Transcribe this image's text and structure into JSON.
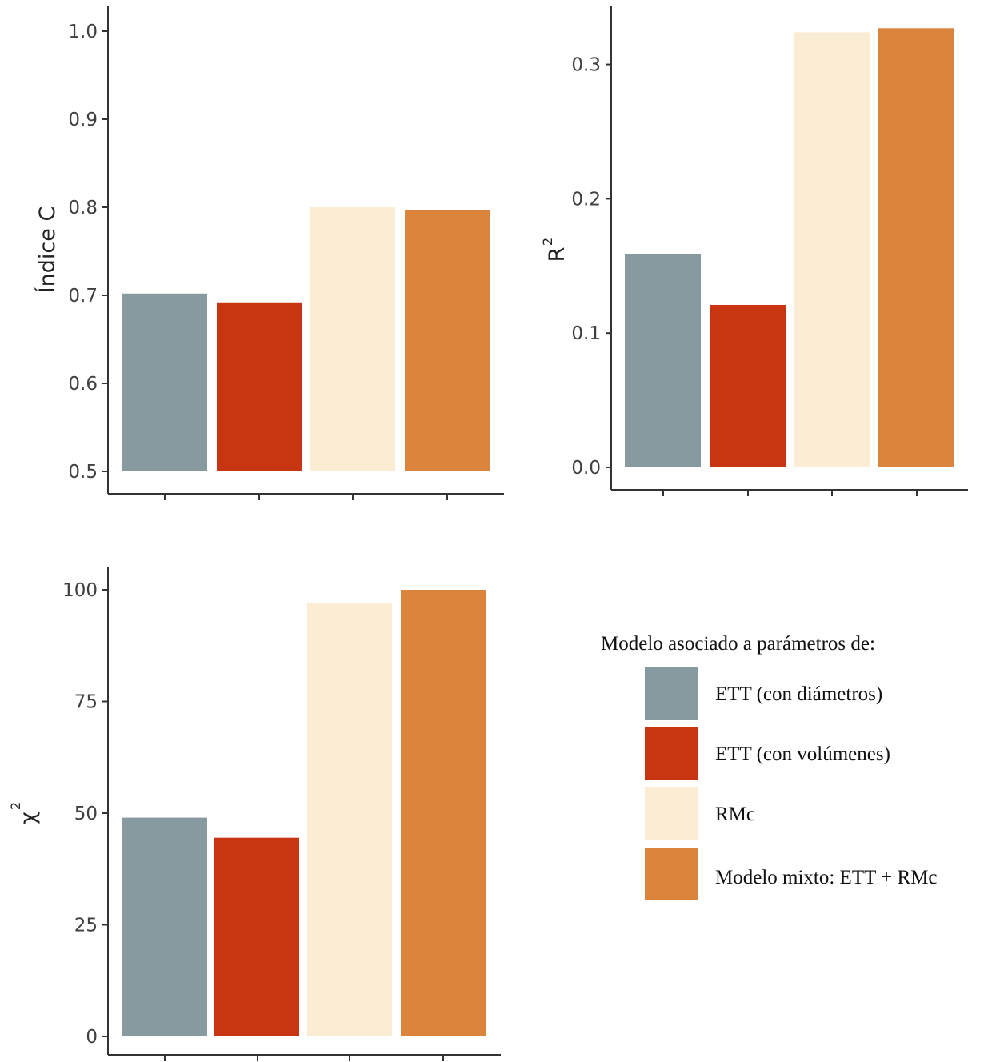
{
  "chart_data": [
    {
      "type": "bar",
      "categories": [
        "ETT (con diámetros)",
        "ETT (con volúmenes)",
        "RMc",
        "Modelo mixto: ETT + RMc"
      ],
      "values": [
        0.702,
        0.692,
        0.8,
        0.797
      ],
      "ylabel": "Índice C",
      "ylim": [
        0.5,
        1.0
      ],
      "yticks": [
        "0.5",
        "0.6",
        "0.7",
        "0.8",
        "0.9",
        "1.0"
      ],
      "grid": false
    },
    {
      "type": "bar",
      "categories": [
        "ETT (con diámetros)",
        "ETT (con volúmenes)",
        "RMc",
        "Modelo mixto: ETT + RMc"
      ],
      "values": [
        0.159,
        0.121,
        0.324,
        0.327
      ],
      "ylabel": "R",
      "ylabel_sup": "2",
      "ylim": [
        0.0,
        0.33
      ],
      "yticks": [
        "0.0",
        "0.1",
        "0.2",
        "0.3"
      ],
      "grid": false
    },
    {
      "type": "bar",
      "categories": [
        "ETT (con diámetros)",
        "ETT (con volúmenes)",
        "RMc",
        "Modelo mixto: ETT + RMc"
      ],
      "values": [
        49,
        44.5,
        97,
        100
      ],
      "ylabel": "χ",
      "ylabel_sup": "2",
      "ylim": [
        0,
        100
      ],
      "yticks": [
        "0",
        "25",
        "50",
        "75",
        "100"
      ],
      "grid": false
    }
  ],
  "legend": {
    "title": "Modelo asociado a parámetros de:",
    "items": [
      {
        "label": "ETT (con diámetros)",
        "color": "#879aa0"
      },
      {
        "label": "ETT (con volúmenes)",
        "color": "#c73513"
      },
      {
        "label": "RMc",
        "color": "#faedd3"
      },
      {
        "label": "Modelo mixto: ETT + RMc",
        "color": "#db843b"
      }
    ]
  },
  "colors": [
    "#879aa0",
    "#c73513",
    "#faedd3",
    "#db843b"
  ]
}
